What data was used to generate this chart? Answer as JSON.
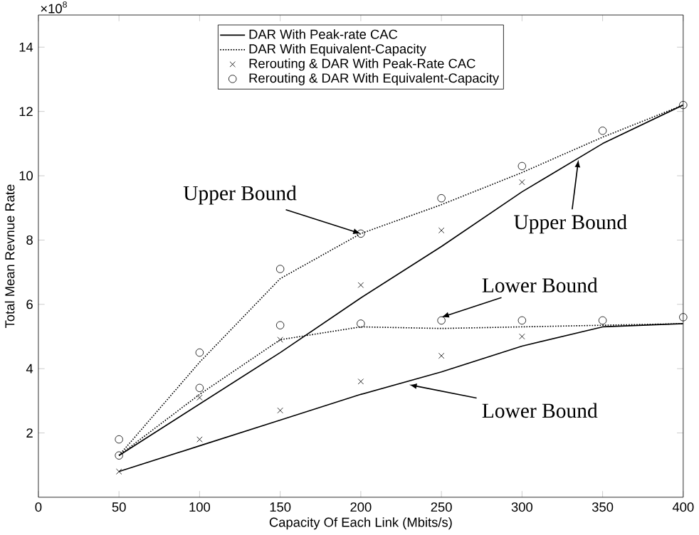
{
  "chart_data": {
    "type": "line",
    "xlabel": "Capacity Of Each Link (Mbits/s)",
    "ylabel": "Total Mean Revnue Rate",
    "x": [
      50,
      100,
      150,
      200,
      250,
      300,
      350,
      400
    ],
    "xlim": [
      0,
      400
    ],
    "xticks": [
      0,
      50,
      100,
      150,
      200,
      250,
      300,
      350,
      400
    ],
    "ylim": [
      0,
      15
    ],
    "yticks": [
      2,
      4,
      6,
      8,
      10,
      12,
      14
    ],
    "legend": "top",
    "grid": false,
    "series": [
      {
        "name": "DAR With Peak-rate CAC",
        "color": "#000000",
        "line_style": "solid",
        "marker": "none",
        "values": [
          1.3,
          2.9,
          4.5,
          6.2,
          7.8,
          9.5,
          11.0,
          12.2
        ]
      },
      {
        "color": "#000000",
        "line_style": "solid",
        "marker": "none",
        "values": [
          0.8,
          1.6,
          2.4,
          3.2,
          3.9,
          4.7,
          5.3,
          5.4
        ]
      },
      {
        "name": "DAR With Equivalent-Capacity",
        "color": "#000000",
        "line_style": "dotted",
        "marker": "none",
        "values": [
          1.3,
          4.2,
          6.8,
          8.2,
          9.1,
          10.1,
          11.2,
          12.2
        ]
      },
      {
        "color": "#000000",
        "line_style": "dotted",
        "marker": "none",
        "values": [
          1.3,
          3.2,
          4.9,
          5.3,
          5.25,
          5.3,
          5.35,
          5.4
        ]
      },
      {
        "name": "Rerouting & DAR With Peak-Rate CAC",
        "type": "scatter",
        "color": "#000000",
        "marker": "cross",
        "values": [
          null,
          3.1,
          4.9,
          6.6,
          8.3,
          9.8,
          null,
          null
        ]
      },
      {
        "type": "scatter",
        "color": "#000000",
        "marker": "cross",
        "values": [
          0.8,
          1.8,
          2.7,
          3.6,
          4.4,
          5.0,
          null,
          null
        ]
      },
      {
        "name": "Rerouting & DAR With Equivalent-Capacity",
        "type": "scatter",
        "color": "#000000",
        "marker": "circle",
        "values": [
          1.8,
          4.5,
          7.1,
          8.2,
          9.3,
          10.3,
          11.4,
          12.2
        ]
      },
      {
        "type": "scatter",
        "color": "#000000",
        "marker": "circle",
        "values": [
          1.3,
          3.4,
          5.35,
          5.4,
          5.5,
          5.5,
          5.5,
          5.6
        ]
      }
    ],
    "annotations": [
      "×10$^{8}$",
      {
        "text": "Upper Bound",
        "x": 200,
        "y": 8.2
      },
      {
        "text": "Upper Bound",
        "x": 335,
        "y": 10.5
      },
      {
        "text": "Lower Bound",
        "x": 250,
        "y": 5.6
      },
      {
        "text": "Lower Bound",
        "x": 230,
        "y": 3.5
      }
    ]
  }
}
